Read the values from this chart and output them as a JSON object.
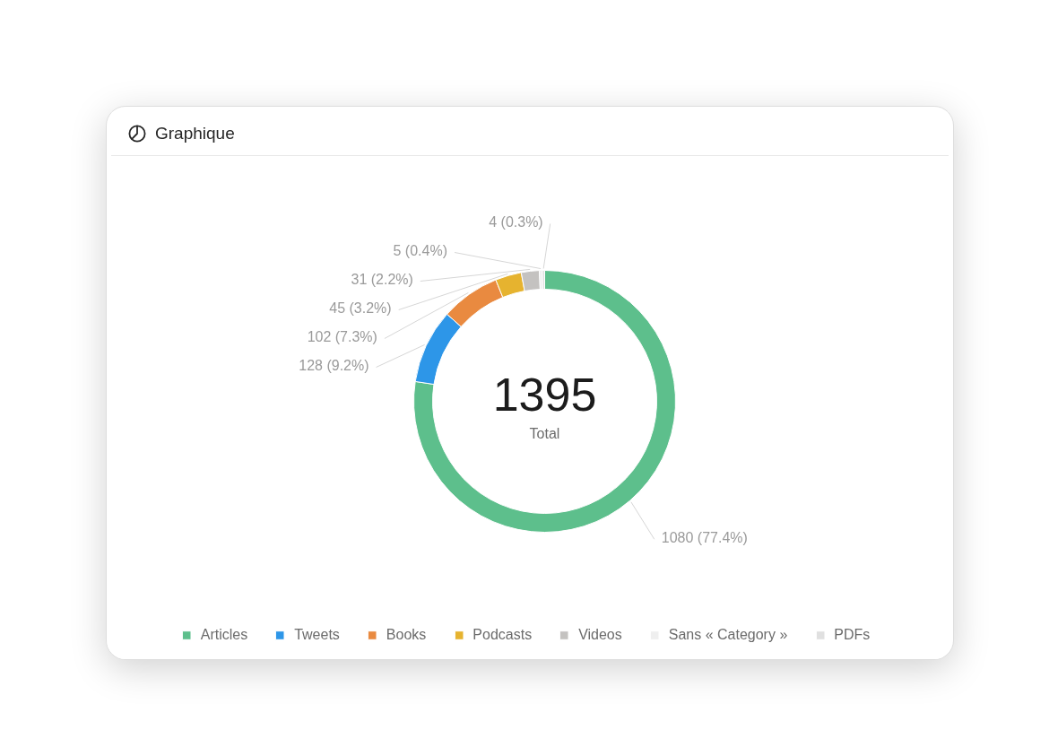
{
  "chart_data": {
    "type": "donut",
    "title": "Graphique",
    "categories": [
      "Articles",
      "Tweets",
      "Books",
      "Podcasts",
      "Videos",
      "Sans « Category »",
      "PDFs"
    ],
    "values": [
      1080,
      128,
      102,
      45,
      31,
      5,
      4
    ],
    "colors": [
      "#5dbf8c",
      "#2d96e8",
      "#e98a40",
      "#e6b32f",
      "#c4c2c0",
      "#efefef",
      "#e0e0e0"
    ],
    "value_labels": [
      "1080 (77.4%)",
      "128 (9.2%)",
      "102 (7.3%)",
      "45 (3.2%)",
      "31 (2.2%)",
      "5 (0.4%)",
      "4 (0.3%)"
    ],
    "annotations": [
      "1395",
      "Total"
    ],
    "legend": "bottom"
  }
}
